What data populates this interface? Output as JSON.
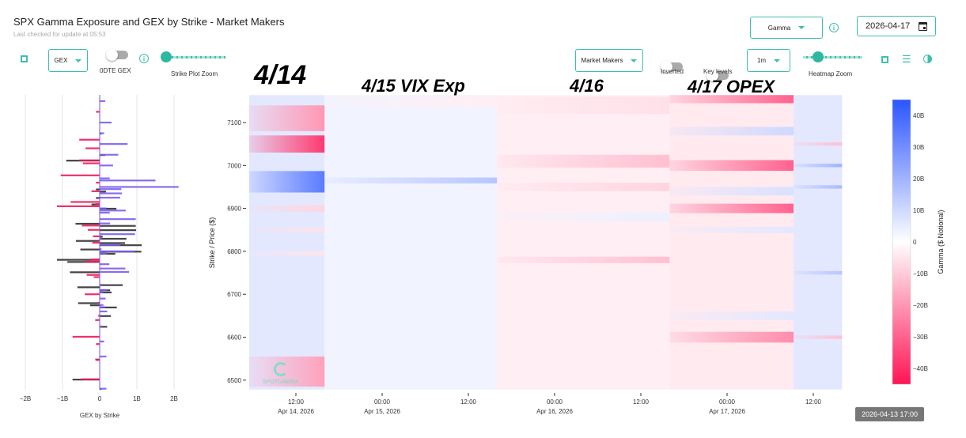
{
  "header": {
    "title": "SPX Gamma Exposure and GEX by Strike - Market Makers",
    "subtitle": "Last checked for update at 05:53",
    "metric_select": "Gamma",
    "date_value": "2026-04-17"
  },
  "toolbar": {
    "gex_select": "GEX",
    "odte_label": "0DTE GEX",
    "odte_on": false,
    "strike_zoom_label": "Strike Plot Zoom",
    "strike_zoom_level": 0,
    "participant_select": "Market Makers",
    "inverted_label": "Inverted",
    "inverted_on": false,
    "key_levels_label": "Key levels",
    "key_levels_on": false,
    "interval_select": "1m",
    "heatmap_zoom_label": "Heatmap Zoom",
    "heatmap_zoom_level": 0.1
  },
  "annotations": [
    "4/14",
    "4/15 VIX Exp",
    "4/16",
    "4/17 OPEX"
  ],
  "tooltip": "2026-04-13 17:00",
  "watermark": "SPOTGAMMA",
  "colors": {
    "accent": "#3dbfaa",
    "positive": "#7b5cf0",
    "negative": "#f0185a",
    "prior": "#444444",
    "heat_pos": "#2a55ff",
    "heat_neg": "#ff1455"
  },
  "chart_data": [
    {
      "type": "bar",
      "orientation": "horizontal",
      "xlabel": "GEX by Strike",
      "xticks": [
        "−2B",
        "−1B",
        "0",
        "1B",
        "2B"
      ],
      "xlim": [
        -2.2,
        2.2
      ],
      "grid": true,
      "units": "B",
      "bars": [
        {
          "strike": 7150,
          "gex": 0.15
        },
        {
          "strike": 7125,
          "gex": -0.1
        },
        {
          "strike": 7100,
          "gex": 0.32
        },
        {
          "strike": 7075,
          "gex": 0.12,
          "prior": 0.05
        },
        {
          "strike": 7060,
          "gex": -0.55
        },
        {
          "strike": 7050,
          "gex": 0.75
        },
        {
          "strike": 7040,
          "gex": -0.38
        },
        {
          "strike": 7025,
          "gex": 0.5,
          "prior": 0.15
        },
        {
          "strike": 7012,
          "gex": -0.55,
          "prior": -0.9
        },
        {
          "strike": 7005,
          "gex": -0.45
        },
        {
          "strike": 7000,
          "gex": 0.36
        },
        {
          "strike": 6977,
          "gex": -1.05
        },
        {
          "strike": 6970,
          "gex": 0.27
        },
        {
          "strike": 6965,
          "gex": 1.5
        },
        {
          "strike": 6960,
          "gex": -0.1
        },
        {
          "strike": 6950,
          "gex": 2.12
        },
        {
          "strike": 6945,
          "gex": 0.58,
          "prior": -0.1
        },
        {
          "strike": 6940,
          "gex": -0.22,
          "prior": 0.17
        },
        {
          "strike": 6935,
          "gex": 0.6
        },
        {
          "strike": 6925,
          "gex": 0.55,
          "prior": -0.1
        },
        {
          "strike": 6915,
          "gex": -0.78
        },
        {
          "strike": 6910,
          "gex": -0.1,
          "prior": -0.22
        },
        {
          "strike": 6905,
          "gex": -1.15
        },
        {
          "strike": 6900,
          "gex": 0.18,
          "prior": 0.45
        },
        {
          "strike": 6895,
          "gex": 0.7
        },
        {
          "strike": 6890,
          "gex": 0.27
        },
        {
          "strike": 6875,
          "gex": 0.97
        },
        {
          "strike": 6865,
          "gex": 0.28,
          "prior": -0.65
        },
        {
          "strike": 6860,
          "gex": -0.48,
          "prior": 0.97
        },
        {
          "strike": 6850,
          "gex": -0.32,
          "prior": 0.98
        },
        {
          "strike": 6840,
          "gex": 0.95
        },
        {
          "strike": 6835,
          "gex": -0.18,
          "prior": 0.08
        },
        {
          "strike": 6830,
          "gex": 0.05,
          "prior": 0.72
        },
        {
          "strike": 6825,
          "gex": -0.05,
          "prior": -0.64
        },
        {
          "strike": 6820,
          "gex": -0.2,
          "prior": 0.68
        },
        {
          "strike": 6815,
          "gex": 0.55,
          "prior": 1.13
        },
        {
          "strike": 6805,
          "gex": 0.05,
          "prior": -0.52
        },
        {
          "strike": 6800,
          "gex": 0.93,
          "prior": 1.12
        },
        {
          "strike": 6795,
          "gex": 0.2,
          "prior": 0.42
        },
        {
          "strike": 6781,
          "gex": -0.24,
          "prior": -1.15
        },
        {
          "strike": 6776,
          "gex": -0.4,
          "prior": -0.87
        },
        {
          "strike": 6770,
          "gex": 0.26
        },
        {
          "strike": 6760,
          "gex": 0.69
        },
        {
          "strike": 6752,
          "gex": 0.79,
          "prior": -0.8
        },
        {
          "strike": 6745,
          "gex": -0.35
        },
        {
          "strike": 6740,
          "gex": -0.16
        },
        {
          "strike": 6722,
          "gex": 0.05,
          "prior": 0.62
        },
        {
          "strike": 6717,
          "gex": 0.02,
          "prior": -0.6
        },
        {
          "strike": 6710,
          "gex": 0.2,
          "prior": 0.28
        },
        {
          "strike": 6705,
          "gex": 0.1,
          "prior": 0.32
        },
        {
          "strike": 6700,
          "gex": -0.4
        },
        {
          "strike": 6690,
          "gex": 0.16
        },
        {
          "strike": 6680,
          "gex": -0.05,
          "prior": -0.58
        },
        {
          "strike": 6675,
          "gex": 0.1,
          "prior": -0.26
        },
        {
          "strike": 6670,
          "gex": 0.15,
          "prior": 0.46
        },
        {
          "strike": 6660,
          "gex": 0.2
        },
        {
          "strike": 6650,
          "gex": -0.04,
          "prior": 0.3
        },
        {
          "strike": 6640,
          "gex": -0.12
        },
        {
          "strike": 6625,
          "gex": 0.05,
          "prior": 0.2
        },
        {
          "strike": 6601,
          "gex": -0.73
        },
        {
          "strike": 6590,
          "gex": 0.12
        },
        {
          "strike": 6584,
          "gex": -0.1
        },
        {
          "strike": 6555,
          "gex": 0.18
        },
        {
          "strike": 6548,
          "gex": -0.12,
          "prior": -0.1
        },
        {
          "strike": 6502,
          "gex": -0.5,
          "prior": -0.73
        },
        {
          "strike": 6480,
          "gex": 0.18,
          "prior": 0.05
        }
      ]
    },
    {
      "type": "heatmap",
      "ylabel": "Strike / Price ($)",
      "colorbar_label": "Gamma ($ Notional)",
      "yticks": [
        7100,
        7000,
        6900,
        6800,
        6700,
        6600,
        6500
      ],
      "ylim": [
        6478,
        7164
      ],
      "color_range": [
        -45,
        45
      ],
      "colorbar_ticks": [
        "40B",
        "30B",
        "20B",
        "10B",
        "0",
        "−10B",
        "−20B",
        "−30B",
        "−40B"
      ],
      "colorbar_values": [
        40,
        30,
        20,
        10,
        0,
        -10,
        -20,
        -30,
        -40
      ],
      "xticks": [
        {
          "time": "2026-04-14T12:00",
          "label": "12:00",
          "date": "Apr 14, 2026"
        },
        {
          "time": "2026-04-15T00:00",
          "label": "00:00",
          "date": "Apr 15, 2026"
        },
        {
          "time": "2026-04-15T12:00",
          "label": "12:00",
          "date": ""
        },
        {
          "time": "2026-04-16T00:00",
          "label": "00:00",
          "date": "Apr 16, 2026"
        },
        {
          "time": "2026-04-16T12:00",
          "label": "12:00",
          "date": ""
        },
        {
          "time": "2026-04-17T00:00",
          "label": "00:00",
          "date": "Apr 17, 2026"
        },
        {
          "time": "2026-04-17T12:00",
          "label": "12:00",
          "date": ""
        }
      ],
      "xlim": [
        "2026-04-14T05:30",
        "2026-04-17T16:00"
      ],
      "segments": [
        {
          "start": "2026-04-14T05:30",
          "end": "2026-04-14T16:00",
          "base": 6,
          "bands": [
            {
              "strike": 7110,
              "span": 60,
              "value": -20
            },
            {
              "strike": 7050,
              "span": 40,
              "value": -38
            },
            {
              "strike": 6962,
              "span": 50,
              "value": 35
            },
            {
              "strike": 6900,
              "span": 15,
              "value": -8
            },
            {
              "strike": 6850,
              "span": 10,
              "value": -6
            },
            {
              "strike": 6795,
              "span": 10,
              "value": -5
            },
            {
              "strike": 6520,
              "span": 70,
              "value": -18
            }
          ]
        },
        {
          "start": "2026-04-14T16:00",
          "end": "2026-04-15T16:00",
          "base": 3,
          "bands": [
            {
              "strike": 6965,
              "span": 14,
              "value": 15
            },
            {
              "strike": 7150,
              "span": 30,
              "value": -3
            }
          ]
        },
        {
          "start": "2026-04-15T16:00",
          "end": "2026-04-16T16:00",
          "base": -3,
          "bands": [
            {
              "strike": 7010,
              "span": 30,
              "value": -12
            },
            {
              "strike": 6950,
              "span": 20,
              "value": -8
            },
            {
              "strike": 7140,
              "span": 40,
              "value": -6
            },
            {
              "strike": 6780,
              "span": 15,
              "value": -12
            },
            {
              "strike": 6880,
              "span": 20,
              "value": 4
            }
          ]
        },
        {
          "start": "2026-04-16T16:00",
          "end": "2026-04-17T09:15",
          "base": -4,
          "bands": [
            {
              "strike": 7155,
              "span": 20,
              "value": -30
            },
            {
              "strike": 7080,
              "span": 20,
              "value": 10
            },
            {
              "strike": 7000,
              "span": 25,
              "value": -30
            },
            {
              "strike": 6940,
              "span": 20,
              "value": 8
            },
            {
              "strike": 6900,
              "span": 22,
              "value": -30
            },
            {
              "strike": 6850,
              "span": 15,
              "value": 6
            },
            {
              "strike": 6600,
              "span": 25,
              "value": -22
            },
            {
              "strike": 6650,
              "span": 20,
              "value": 6
            }
          ]
        },
        {
          "start": "2026-04-17T09:15",
          "end": "2026-04-17T16:00",
          "base": 6,
          "bands": [
            {
              "strike": 7050,
              "span": 8,
              "value": -12
            },
            {
              "strike": 7000,
              "span": 8,
              "value": 20
            },
            {
              "strike": 6950,
              "span": 8,
              "value": 18
            },
            {
              "strike": 6750,
              "span": 8,
              "value": 15
            },
            {
              "strike": 6600,
              "span": 8,
              "value": -12
            }
          ]
        }
      ]
    }
  ]
}
